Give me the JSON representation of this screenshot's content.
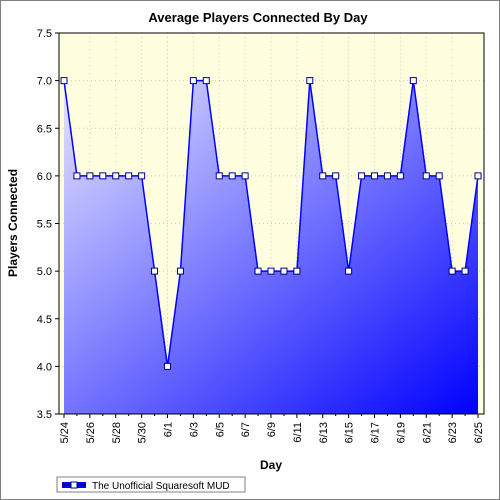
{
  "chart_data": {
    "type": "area",
    "title": "Average Players Connected By Day",
    "xlabel": "Day",
    "ylabel": "Players Connected",
    "ylim": [
      3.5,
      7.5
    ],
    "yticks": [
      "3.5",
      "4.0",
      "4.5",
      "5.0",
      "5.5",
      "6.0",
      "6.5",
      "7.0",
      "7.5"
    ],
    "x": [
      "5/24",
      "5/25",
      "5/26",
      "5/27",
      "5/28",
      "5/29",
      "5/30",
      "5/31",
      "6/1",
      "6/2",
      "6/3",
      "6/4",
      "6/5",
      "6/6",
      "6/7",
      "6/8",
      "6/9",
      "6/10",
      "6/11",
      "6/12",
      "6/13",
      "6/14",
      "6/15",
      "6/16",
      "6/17",
      "6/18",
      "6/19",
      "6/20",
      "6/21",
      "6/22",
      "6/23",
      "6/24",
      "6/25"
    ],
    "xtick_labels": [
      "5/24",
      "5/26",
      "5/28",
      "5/30",
      "6/1",
      "6/3",
      "6/5",
      "6/7",
      "6/9",
      "6/11",
      "6/13",
      "6/15",
      "6/17",
      "6/19",
      "6/21",
      "6/23",
      "6/25"
    ],
    "series": [
      {
        "name": "The Unofficial Squaresoft MUD",
        "values": [
          7.0,
          6.0,
          6.0,
          6.0,
          6.0,
          6.0,
          6.0,
          5.0,
          4.0,
          5.0,
          7.0,
          7.0,
          6.0,
          6.0,
          6.0,
          5.0,
          5.0,
          5.0,
          5.0,
          7.0,
          6.0,
          6.0,
          5.0,
          6.0,
          6.0,
          6.0,
          6.0,
          7.0,
          6.0,
          6.0,
          5.0,
          5.0,
          6.0
        ]
      }
    ],
    "grid": true,
    "legend": "bottom-left",
    "colors": {
      "plot_background": "#FFFFE0",
      "line": "#0000FF",
      "fill_light": "#E0E0FF",
      "fill_dark": "#0000FF",
      "marker_fill": "#FFFFFF"
    }
  }
}
